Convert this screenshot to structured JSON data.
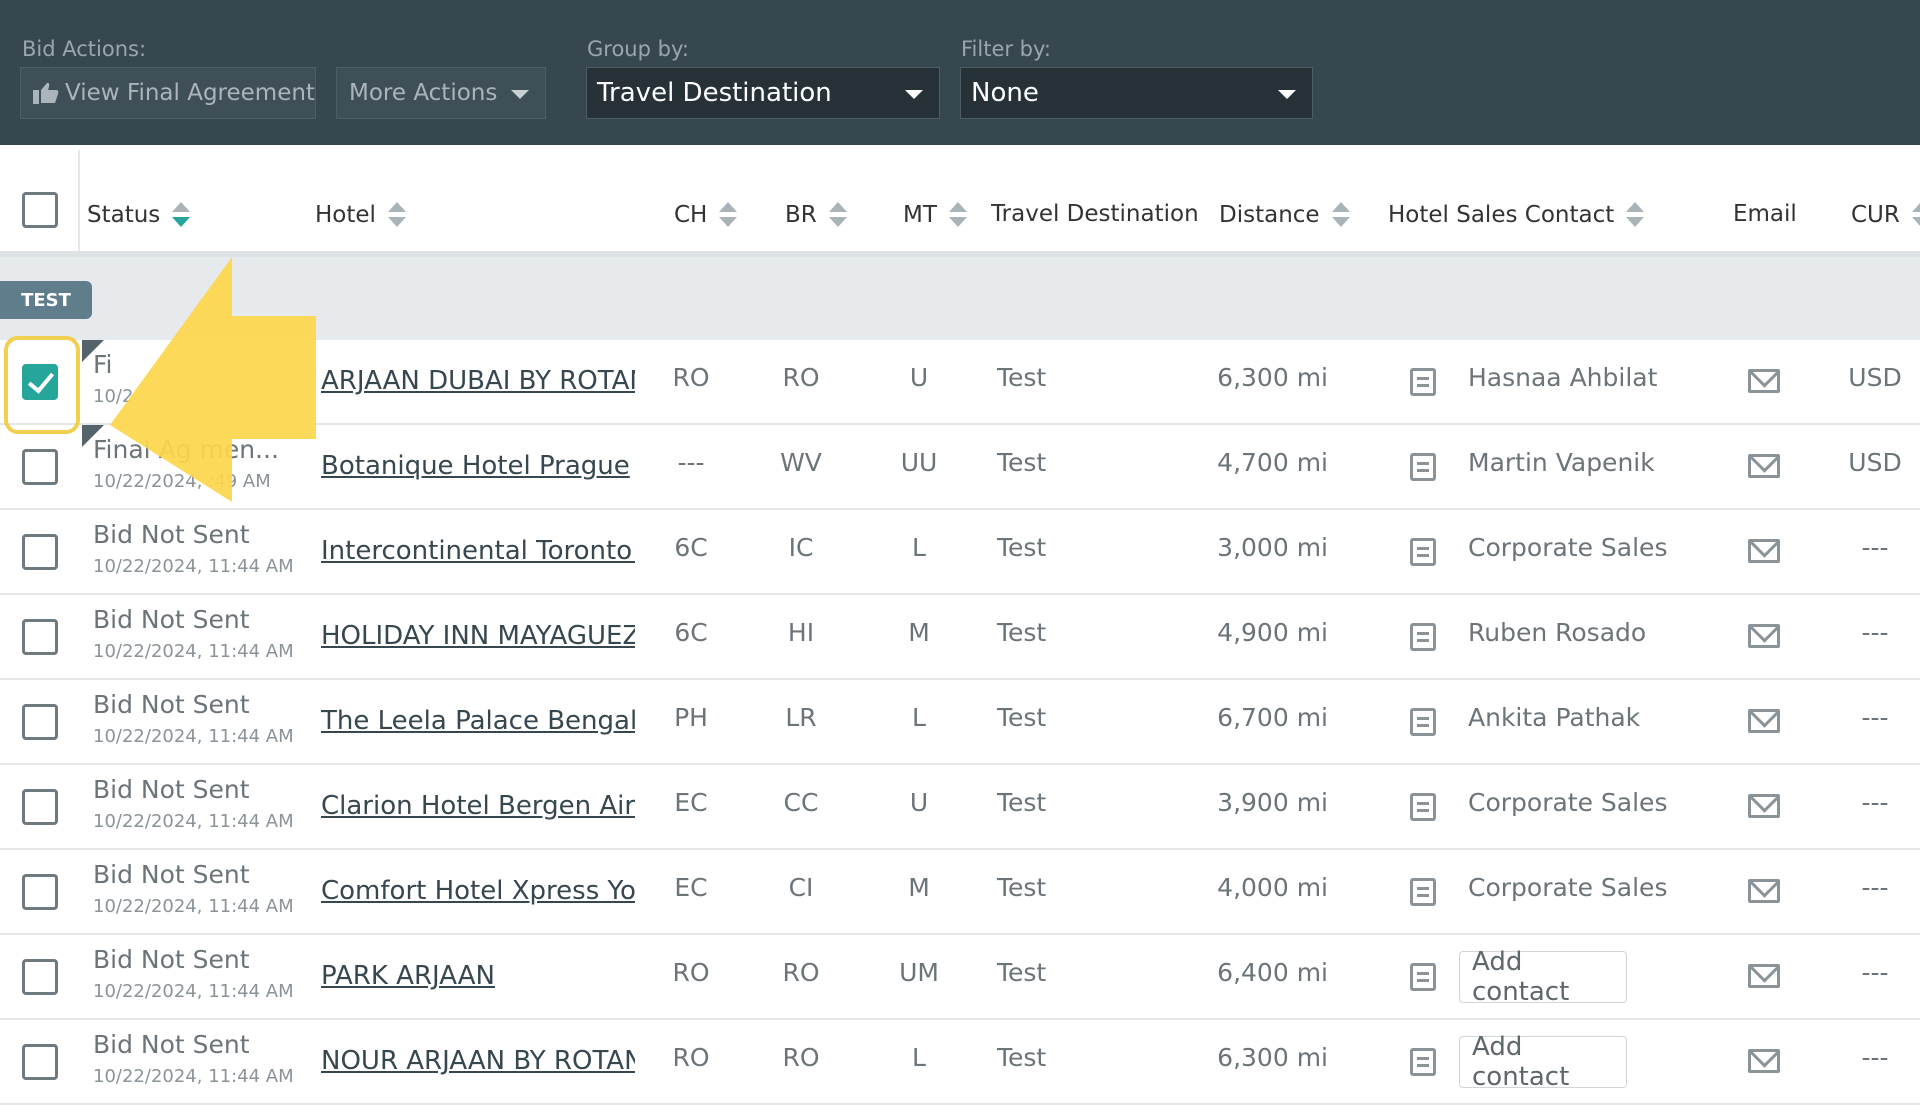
{
  "toolbar": {
    "bid_actions_label": "Bid Actions:",
    "view_final_agreement": "View Final Agreement",
    "more_actions": "More Actions",
    "group_by_label": "Group by:",
    "group_by_value": "Travel Destination",
    "filter_by_label": "Filter by:",
    "filter_by_value": "None"
  },
  "columns": {
    "status": "Status",
    "hotel": "Hotel",
    "ch": "CH",
    "br": "BR",
    "mt": "MT",
    "travel_destination": "Travel Destination",
    "distance": "Distance",
    "hotel_sales_contact": "Hotel Sales Contact",
    "email": "Email",
    "cur": "CUR"
  },
  "group": {
    "label": "TEST"
  },
  "rows": [
    {
      "checked": true,
      "status": "Fi",
      "date": "10/2",
      "hotel": "ARJAAN DUBAI BY ROTANA",
      "ch": "RO",
      "br": "RO",
      "mt": "U",
      "dest": "Test",
      "distance": "6,300 mi",
      "contact": "Hasnaa Ahbilat",
      "cur": "USD"
    },
    {
      "checked": false,
      "status": "Final Ag    men...",
      "date": "10/22/2024,    :49 AM",
      "hotel": "Botanique Hotel Prague",
      "ch": "---",
      "br": "WV",
      "mt": "UU",
      "dest": "Test",
      "distance": "4,700 mi",
      "contact": "Martin Vapenik",
      "cur": "USD"
    },
    {
      "checked": false,
      "status": "Bid Not Sent",
      "date": "10/22/2024, 11:44 AM",
      "hotel": "Intercontinental Toronto Centre",
      "ch": "6C",
      "br": "IC",
      "mt": "L",
      "dest": "Test",
      "distance": "3,000 mi",
      "contact": "Corporate Sales",
      "cur": "---"
    },
    {
      "checked": false,
      "status": "Bid Not Sent",
      "date": "10/22/2024, 11:44 AM",
      "hotel": "HOLIDAY INN MAYAGUEZ & TROPICAL",
      "ch": "6C",
      "br": "HI",
      "mt": "M",
      "dest": "Test",
      "distance": "4,900 mi",
      "contact": "Ruben Rosado",
      "cur": "---"
    },
    {
      "checked": false,
      "status": "Bid Not Sent",
      "date": "10/22/2024, 11:44 AM",
      "hotel": "The Leela Palace Bengaluru",
      "ch": "PH",
      "br": "LR",
      "mt": "L",
      "dest": "Test",
      "distance": "6,700 mi",
      "contact": "Ankita Pathak",
      "cur": "---"
    },
    {
      "checked": false,
      "status": "Bid Not Sent",
      "date": "10/22/2024, 11:44 AM",
      "hotel": "Clarion Hotel Bergen Airport",
      "ch": "EC",
      "br": "CC",
      "mt": "U",
      "dest": "Test",
      "distance": "3,900 mi",
      "contact": "Corporate Sales",
      "cur": "---"
    },
    {
      "checked": false,
      "status": "Bid Not Sent",
      "date": "10/22/2024, 11:44 AM",
      "hotel": "Comfort Hotel Xpress Youngstorget",
      "ch": "EC",
      "br": "CI",
      "mt": "M",
      "dest": "Test",
      "distance": "4,000 mi",
      "contact": "Corporate Sales",
      "cur": "---"
    },
    {
      "checked": false,
      "status": "Bid Not Sent",
      "date": "10/22/2024, 11:44 AM",
      "hotel": "PARK ARJAAN",
      "ch": "RO",
      "br": "RO",
      "mt": "UM",
      "dest": "Test",
      "distance": "6,400 mi",
      "contact": "",
      "add_contact": "Add contact",
      "cur": "---"
    },
    {
      "checked": false,
      "status": "Bid Not Sent",
      "date": "10/22/2024, 11:44 AM",
      "hotel": "NOUR ARJAAN BY ROTANA",
      "ch": "RO",
      "br": "RO",
      "mt": "L",
      "dest": "Test",
      "distance": "6,300 mi",
      "contact": "",
      "add_contact": "Add contact",
      "cur": "---"
    }
  ],
  "colors": {
    "toolbar_bg": "#37474f",
    "accent": "#26a69a",
    "highlight": "#f2cf4f",
    "group_tag": "#607d8b"
  }
}
